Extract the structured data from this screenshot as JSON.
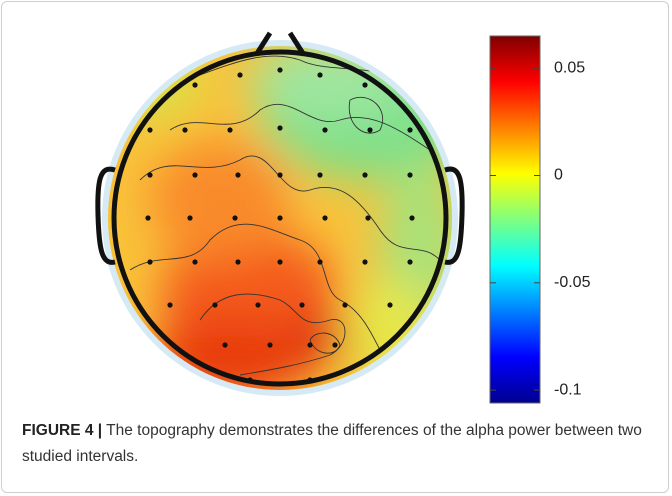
{
  "figure": {
    "colorbar": {
      "clim": [
        -0.106,
        0.065
      ],
      "ticks": [
        0.05,
        0,
        -0.05,
        -0.1
      ]
    },
    "caption": {
      "label": "FIGURE 4 |",
      "text": "The topography demonstrates the differences of the alpha power between two studied intervals."
    }
  }
}
